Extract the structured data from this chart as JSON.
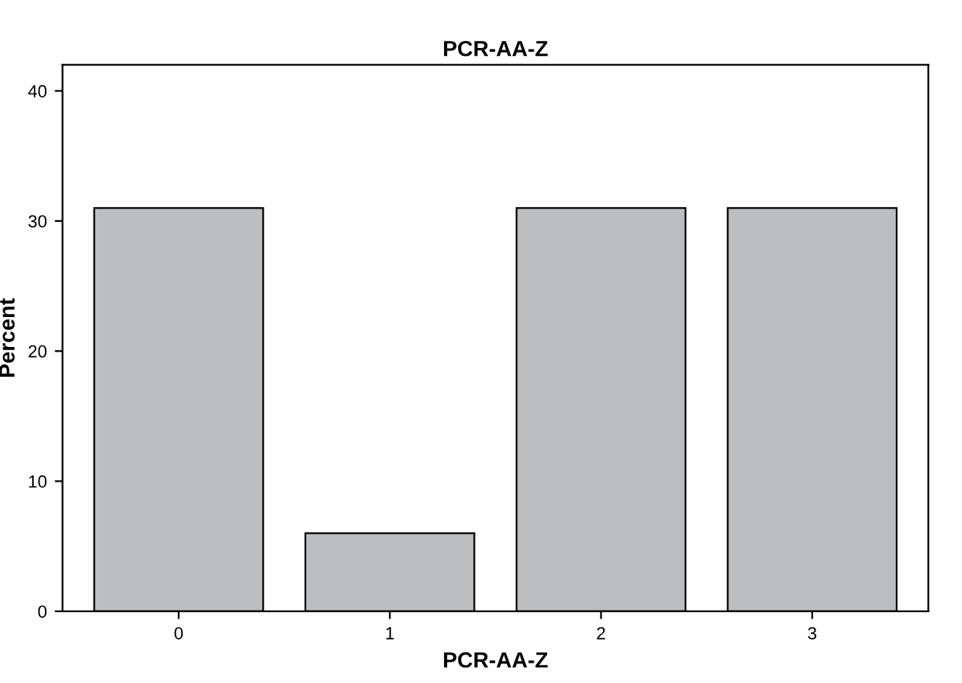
{
  "chart_data": {
    "type": "bar",
    "title": "PCR-AA-Z",
    "xlabel": "PCR-AA-Z",
    "ylabel": "Percent",
    "categories": [
      "0",
      "1",
      "2",
      "3"
    ],
    "values": [
      31,
      6,
      31,
      31
    ],
    "color": "#bcbec0",
    "ylim": [
      0,
      42
    ],
    "yticks": [
      0,
      10,
      20,
      30,
      40
    ],
    "grid": false,
    "legend": false
  }
}
